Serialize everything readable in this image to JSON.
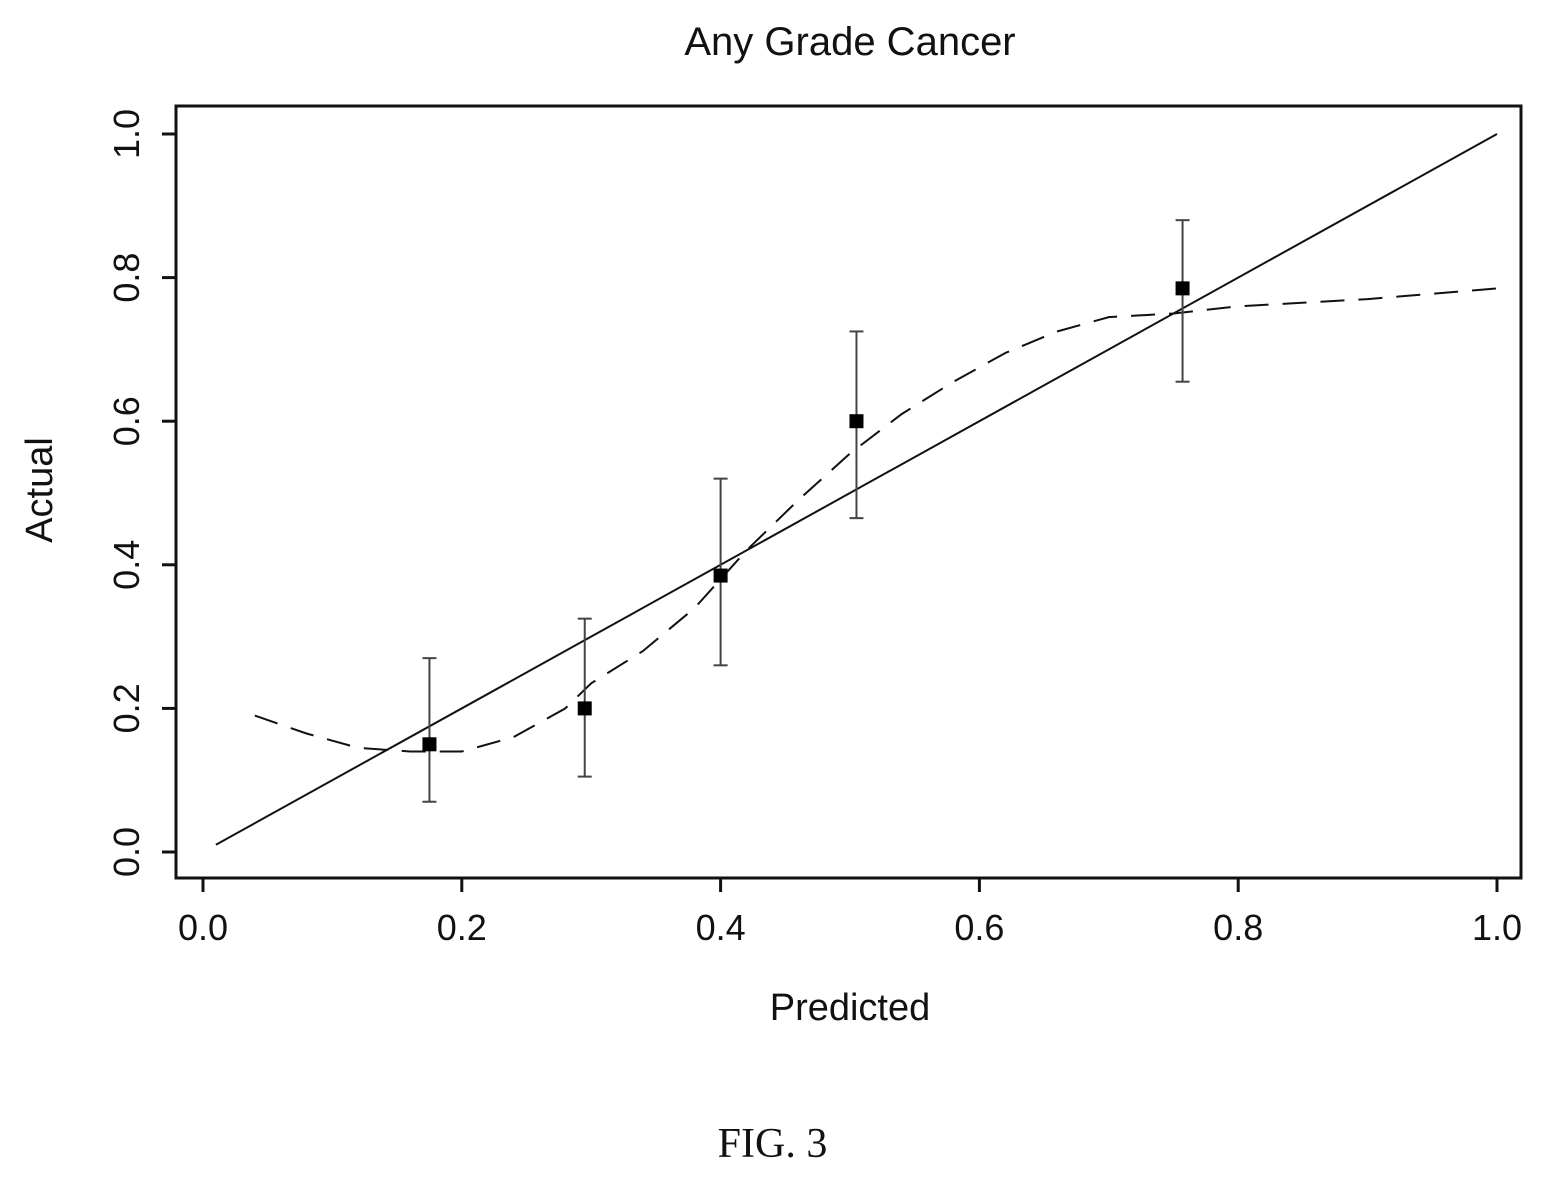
{
  "chart_data": {
    "type": "scatter",
    "title": "Any Grade Cancer",
    "xlabel": "Predicted",
    "ylabel": "Actual",
    "xlim": [
      0.0,
      1.0
    ],
    "ylim": [
      0.0,
      1.0
    ],
    "x_ticks": [
      "0.0",
      "0.2",
      "0.4",
      "0.6",
      "0.8",
      "1.0"
    ],
    "y_ticks": [
      "0.0",
      "0.2",
      "0.4",
      "0.6",
      "0.8",
      "1.0"
    ],
    "grid": false,
    "legend": "none",
    "series": [
      {
        "style": "solid-line",
        "points": [
          [
            0.01,
            0.01
          ],
          [
            1.0,
            1.0
          ]
        ]
      },
      {
        "style": "dashed-line",
        "points": [
          [
            0.04,
            0.19
          ],
          [
            0.08,
            0.165
          ],
          [
            0.12,
            0.145
          ],
          [
            0.16,
            0.14
          ],
          [
            0.2,
            0.14
          ],
          [
            0.24,
            0.16
          ],
          [
            0.28,
            0.2
          ],
          [
            0.3,
            0.235
          ],
          [
            0.34,
            0.28
          ],
          [
            0.38,
            0.34
          ],
          [
            0.42,
            0.42
          ],
          [
            0.46,
            0.49
          ],
          [
            0.5,
            0.555
          ],
          [
            0.54,
            0.61
          ],
          [
            0.58,
            0.655
          ],
          [
            0.62,
            0.695
          ],
          [
            0.66,
            0.725
          ],
          [
            0.7,
            0.745
          ],
          [
            0.75,
            0.75
          ],
          [
            0.8,
            0.76
          ],
          [
            0.9,
            0.77
          ],
          [
            1.0,
            0.785
          ]
        ]
      },
      {
        "style": "square-markers-with-error-bars",
        "points": [
          {
            "x": 0.175,
            "y": 0.15,
            "lo": 0.07,
            "hi": 0.27
          },
          {
            "x": 0.295,
            "y": 0.2,
            "lo": 0.105,
            "hi": 0.325
          },
          {
            "x": 0.4,
            "y": 0.385,
            "lo": 0.26,
            "hi": 0.52
          },
          {
            "x": 0.505,
            "y": 0.6,
            "lo": 0.465,
            "hi": 0.725
          },
          {
            "x": 0.757,
            "y": 0.785,
            "lo": 0.655,
            "hi": 0.88
          }
        ]
      }
    ]
  },
  "caption": "FIG. 3"
}
